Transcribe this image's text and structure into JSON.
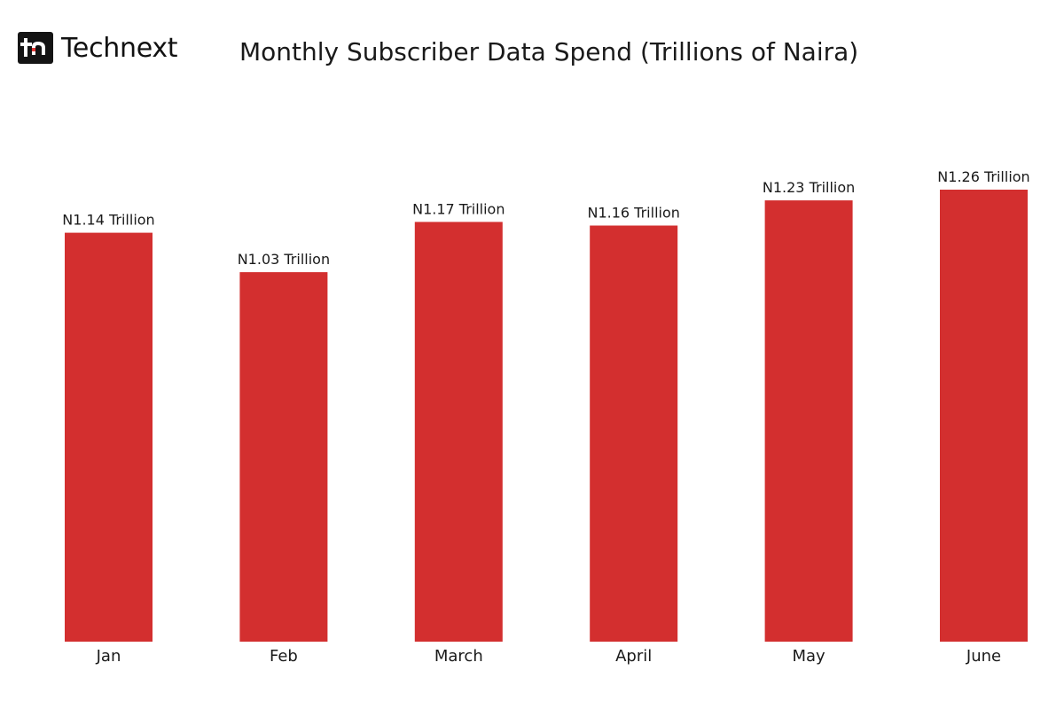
{
  "brand": {
    "name": "Technext",
    "logo_icon": "tn-logo-icon"
  },
  "colors": {
    "bar": "#d32f2f",
    "text": "#1a1a1a",
    "logo_bg": "#141414",
    "logo_accent": "#e53935"
  },
  "chart_data": {
    "type": "bar",
    "title": "Monthly Subscriber Data Spend (Trillions of Naira)",
    "xlabel": "",
    "ylabel": "",
    "categories": [
      "Jan",
      "Feb",
      "March",
      "April",
      "May",
      "June"
    ],
    "values": [
      1.14,
      1.03,
      1.17,
      1.16,
      1.23,
      1.26
    ],
    "data_labels": [
      "N1.14 Trillion",
      "N1.03 Trillion",
      "N1.17 Trillion",
      "N1.16 Trillion",
      "N1.23 Trillion",
      "N1.26 Trillion"
    ],
    "ylim": [
      0,
      1.26
    ],
    "grid": false,
    "legend": "none"
  }
}
